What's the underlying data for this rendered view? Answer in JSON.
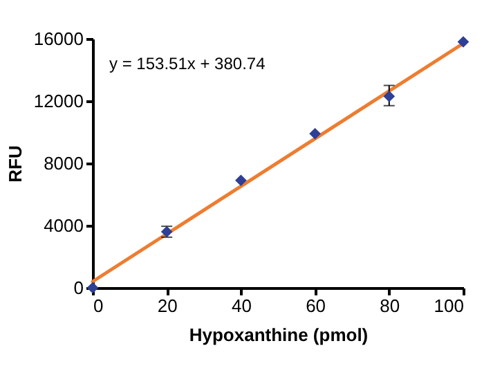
{
  "chart_data": {
    "type": "scatter",
    "xlabel": "Hypoxanthine  (pmol)",
    "ylabel": "RFU",
    "annotations": [
      "y = 153.51x + 380.74"
    ],
    "series": [
      {
        "type": "line",
        "color": "#ed7d31",
        "marker": "none",
        "x": [
          0,
          100
        ],
        "values": [
          400,
          15700
        ]
      },
      {
        "color": "#2e3f95",
        "marker": "diamond",
        "x": [
          0,
          20,
          40,
          60,
          80,
          100
        ],
        "values": [
          0,
          3600,
          6900,
          9900,
          12300,
          15800
        ],
        "errors": [
          null,
          350,
          null,
          null,
          [
            11700,
            13000
          ],
          null
        ]
      }
    ],
    "xlim": [
      0,
      100
    ],
    "xticks": [
      0,
      20,
      40,
      60,
      80,
      100
    ],
    "ylim": [
      0,
      16000
    ],
    "yticks": [
      0,
      4000,
      8000,
      12000,
      16000
    ],
    "grid": false
  }
}
